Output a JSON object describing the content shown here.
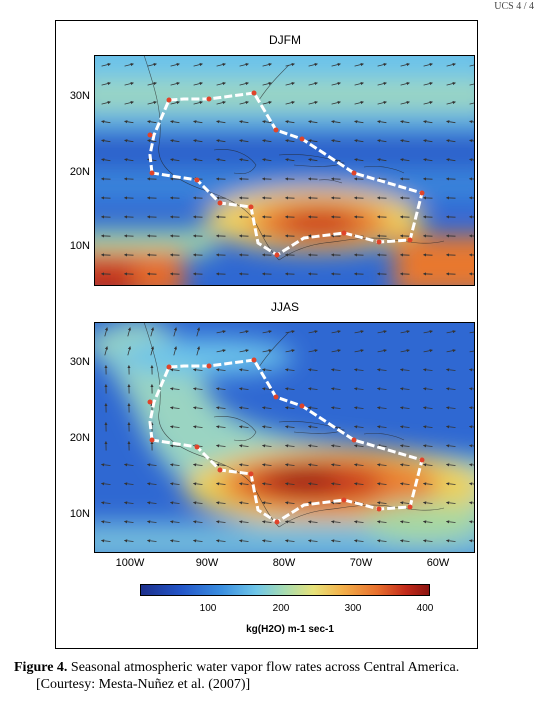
{
  "header": {
    "text": "UCS 4 / 4"
  },
  "figure": {
    "panels": [
      {
        "title": "DJFM"
      },
      {
        "title": "JJAS"
      }
    ],
    "y_ticks": [
      "30N",
      "20N",
      "10N"
    ],
    "x_ticks": [
      "100W",
      "90W",
      "80W",
      "70W",
      "60W"
    ],
    "colorbar": {
      "ticks": [
        "100",
        "200",
        "300",
        "400"
      ],
      "unit_label": "kg(H2O) m-1 sec-1"
    }
  },
  "caption": {
    "label": "Figure 4.",
    "text": " Seasonal atmospheric water vapor flow rates across Central America.",
    "credit": "[Courtesy: Mesta-Nuñez et al. (2007)]"
  },
  "colors": {
    "boundary": "#ffffff",
    "vertex": "#e0442a",
    "arrow": "#333333"
  }
}
